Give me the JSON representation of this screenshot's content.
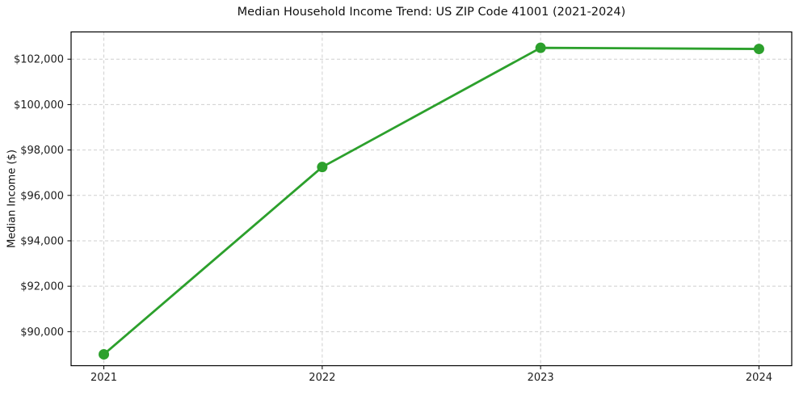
{
  "chart_data": {
    "type": "line",
    "title": "Median Household Income Trend: US ZIP Code 41001 (2021-2024)",
    "x": [
      "2021",
      "2022",
      "2023",
      "2024"
    ],
    "series": [
      {
        "name": "Median Household Income",
        "values": [
          89000,
          97250,
          102500,
          102450
        ]
      }
    ],
    "xlabel": "",
    "ylabel": "Median Income ($)",
    "ylim": [
      88500,
      103200
    ],
    "yticks": [
      90000,
      92000,
      94000,
      96000,
      98000,
      100000,
      102000
    ],
    "ytick_prefix": "$",
    "x_margin": 0.15,
    "grid": true,
    "grid_color": "#cfcfcf",
    "grid_style": "dashed",
    "legend": "none",
    "line_color": "#2ca02c",
    "marker": "circle",
    "marker_radius": 6.5,
    "line_width": 2.8,
    "axis_color": "#000000",
    "tick_label_color": "#1c1c1c"
  }
}
